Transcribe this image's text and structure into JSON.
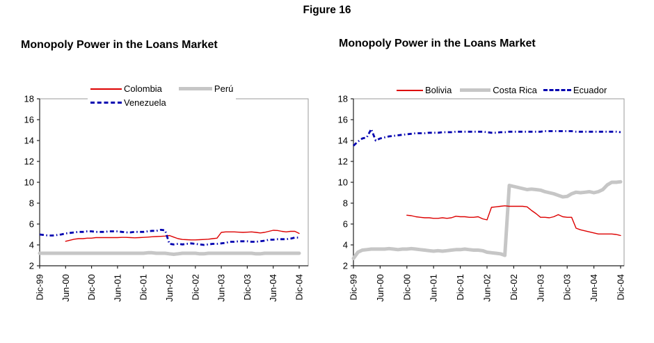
{
  "figure_title": "Figure 16",
  "chart_data": [
    {
      "type": "line",
      "title": "Monopoly Power in the Loans Market",
      "xlabel": "",
      "ylabel": "",
      "ylim": [
        2,
        18
      ],
      "y_ticks": [
        2,
        4,
        6,
        8,
        10,
        12,
        14,
        16,
        18
      ],
      "x_frequency": "monthly",
      "n_points": 61,
      "x_tick_labels": [
        "Dic-99",
        "Jun-00",
        "Dic-00",
        "Jun-01",
        "Dic-01",
        "Jun-02",
        "Dic-02",
        "Jun-03",
        "Dic-03",
        "Jun-04",
        "Dic-04"
      ],
      "x_tick_indices": [
        0,
        6,
        12,
        18,
        24,
        30,
        36,
        42,
        48,
        54,
        60
      ],
      "grid": false,
      "legend_position": "top",
      "series": [
        {
          "name": "Colombia",
          "color": "#dd0000",
          "style": "thin",
          "values": [
            null,
            null,
            null,
            null,
            null,
            null,
            4.35,
            4.45,
            4.55,
            4.6,
            4.6,
            4.65,
            4.65,
            4.7,
            4.7,
            4.7,
            4.7,
            4.7,
            4.7,
            4.72,
            4.72,
            4.7,
            4.68,
            4.7,
            4.72,
            4.75,
            4.78,
            4.8,
            4.82,
            4.85,
            4.9,
            4.75,
            4.6,
            4.52,
            4.5,
            4.48,
            4.48,
            4.5,
            4.52,
            4.55,
            4.6,
            4.65,
            5.2,
            5.25,
            5.25,
            5.25,
            5.22,
            5.2,
            5.22,
            5.25,
            5.2,
            5.15,
            5.2,
            5.3,
            5.4,
            5.38,
            5.3,
            5.25,
            5.3,
            5.3,
            5.1
          ]
        },
        {
          "name": "Perú",
          "color": "#c6c6c6",
          "style": "thick",
          "values": [
            3.2,
            3.2,
            3.2,
            3.2,
            3.2,
            3.2,
            3.2,
            3.2,
            3.2,
            3.2,
            3.2,
            3.2,
            3.2,
            3.2,
            3.2,
            3.2,
            3.2,
            3.2,
            3.2,
            3.2,
            3.2,
            3.2,
            3.2,
            3.2,
            3.2,
            3.25,
            3.25,
            3.2,
            3.2,
            3.2,
            3.15,
            3.1,
            3.15,
            3.2,
            3.2,
            3.2,
            3.2,
            3.15,
            3.15,
            3.2,
            3.2,
            3.2,
            3.2,
            3.2,
            3.2,
            3.2,
            3.2,
            3.2,
            3.2,
            3.2,
            3.15,
            3.15,
            3.2,
            3.2,
            3.2,
            3.2,
            3.2,
            3.2,
            3.2,
            3.2,
            3.2
          ]
        },
        {
          "name": "Venezuela",
          "color": "#0000b0",
          "style": "dashed",
          "values": [
            5.0,
            4.95,
            4.9,
            4.9,
            4.95,
            5.0,
            5.1,
            5.15,
            5.2,
            5.25,
            5.25,
            5.3,
            5.3,
            5.25,
            5.25,
            5.25,
            5.3,
            5.3,
            5.3,
            5.25,
            5.2,
            5.2,
            5.25,
            5.25,
            5.25,
            5.3,
            5.35,
            5.35,
            5.45,
            5.4,
            4.1,
            4.05,
            4.1,
            4.05,
            4.1,
            4.15,
            4.1,
            4.05,
            4.0,
            4.05,
            4.1,
            4.1,
            4.15,
            4.2,
            4.3,
            4.3,
            4.35,
            4.35,
            4.35,
            4.3,
            4.3,
            4.35,
            4.4,
            4.5,
            4.5,
            4.55,
            4.55,
            4.55,
            4.6,
            4.7,
            4.7
          ]
        }
      ]
    },
    {
      "type": "line",
      "title": "Monopoly Power in the Loans Market",
      "xlabel": "",
      "ylabel": "",
      "ylim": [
        2,
        18
      ],
      "y_ticks": [
        2,
        4,
        6,
        8,
        10,
        12,
        14,
        16,
        18
      ],
      "x_frequency": "monthly",
      "n_points": 61,
      "x_tick_labels": [
        "Dic-99",
        "Jun-00",
        "Dic-00",
        "Jun-01",
        "Dic-01",
        "Jun-02",
        "Dic-02",
        "Jun-03",
        "Dic-03",
        "Jun-04",
        "Dic-04"
      ],
      "x_tick_indices": [
        0,
        6,
        12,
        18,
        24,
        30,
        36,
        42,
        48,
        54,
        60
      ],
      "grid": false,
      "legend_position": "top",
      "series": [
        {
          "name": "Bolivia",
          "color": "#dd0000",
          "style": "thin",
          "values": [
            null,
            null,
            null,
            null,
            null,
            null,
            null,
            null,
            null,
            null,
            null,
            null,
            6.85,
            6.8,
            6.7,
            6.65,
            6.6,
            6.6,
            6.55,
            6.55,
            6.6,
            6.55,
            6.6,
            6.75,
            6.7,
            6.7,
            6.65,
            6.65,
            6.7,
            6.5,
            6.4,
            7.6,
            7.65,
            7.7,
            7.75,
            7.7,
            7.7,
            7.7,
            7.7,
            7.65,
            7.3,
            7.0,
            6.65,
            6.65,
            6.6,
            6.7,
            6.9,
            6.7,
            6.65,
            6.65,
            5.6,
            5.45,
            5.35,
            5.25,
            5.15,
            5.05,
            5.05,
            5.05,
            5.05,
            5.0,
            4.9
          ]
        },
        {
          "name": "Costa Rica",
          "color": "#c6c6c6",
          "style": "thick",
          "values": [
            2.7,
            3.3,
            3.5,
            3.55,
            3.6,
            3.6,
            3.6,
            3.6,
            3.65,
            3.6,
            3.55,
            3.6,
            3.6,
            3.65,
            3.6,
            3.55,
            3.5,
            3.45,
            3.4,
            3.45,
            3.4,
            3.45,
            3.5,
            3.55,
            3.55,
            3.6,
            3.55,
            3.5,
            3.5,
            3.45,
            3.3,
            3.25,
            3.2,
            3.15,
            3.0,
            9.7,
            9.6,
            9.5,
            9.4,
            9.3,
            9.35,
            9.3,
            9.25,
            9.1,
            9.0,
            8.9,
            8.75,
            8.6,
            8.65,
            8.9,
            9.05,
            9.0,
            9.05,
            9.1,
            9.0,
            9.1,
            9.3,
            9.75,
            10.0,
            10.0,
            10.05
          ]
        },
        {
          "name": "Ecuador",
          "color": "#0000b0",
          "style": "dashed",
          "values": [
            13.5,
            13.9,
            14.2,
            14.3,
            15.1,
            14.0,
            14.2,
            14.3,
            14.4,
            14.45,
            14.5,
            14.55,
            14.6,
            14.65,
            14.7,
            14.7,
            14.7,
            14.75,
            14.75,
            14.75,
            14.8,
            14.8,
            14.8,
            14.85,
            14.85,
            14.85,
            14.85,
            14.85,
            14.85,
            14.85,
            14.8,
            14.75,
            14.75,
            14.8,
            14.8,
            14.85,
            14.85,
            14.85,
            14.85,
            14.85,
            14.85,
            14.85,
            14.85,
            14.9,
            14.9,
            14.9,
            14.9,
            14.9,
            14.9,
            14.9,
            14.85,
            14.85,
            14.85,
            14.85,
            14.85,
            14.85,
            14.85,
            14.85,
            14.85,
            14.85,
            14.8
          ]
        }
      ]
    }
  ]
}
